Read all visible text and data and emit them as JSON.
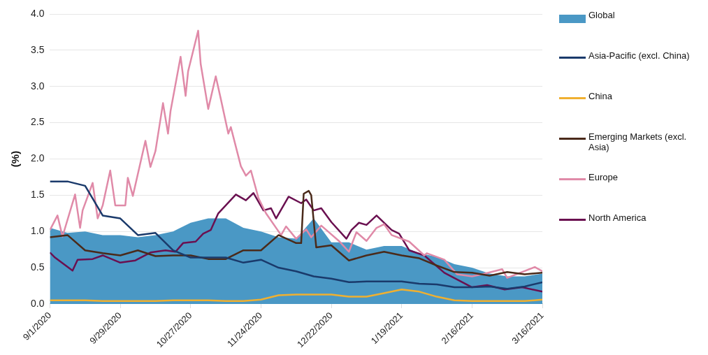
{
  "chart_data": {
    "type": "line",
    "ylabel": "(%)",
    "xlim": [
      "2020-09-01",
      "2021-03-16"
    ],
    "xticks": [
      {
        "value": "2020-09-01",
        "label": "9/1/2020"
      },
      {
        "value": "2020-09-29",
        "label": "9/29/2020"
      },
      {
        "value": "2020-10-27",
        "label": "10/27/2020"
      },
      {
        "value": "2020-11-24",
        "label": "11/24/2020"
      },
      {
        "value": "2020-12-22",
        "label": "12/22/2020"
      },
      {
        "value": "2021-01-19",
        "label": "1/19/2021"
      },
      {
        "value": "2021-02-16",
        "label": "2/16/2021"
      },
      {
        "value": "2021-03-16",
        "label": "3/16/2021"
      }
    ],
    "ylim": [
      0,
      4
    ],
    "yticks": [
      {
        "value": 0,
        "label": "0.0"
      },
      {
        "value": 0.5,
        "label": "0.5"
      },
      {
        "value": 1,
        "label": "1.0"
      },
      {
        "value": 1.5,
        "label": "1.5"
      },
      {
        "value": 2,
        "label": "2.0"
      },
      {
        "value": 2.5,
        "label": "2.5"
      },
      {
        "value": 3,
        "label": "3.0"
      },
      {
        "value": 3.5,
        "label": "3.5"
      },
      {
        "value": 4,
        "label": "4.0"
      }
    ],
    "grid": "y",
    "legend": "right",
    "marker": "none",
    "line_style": "solid",
    "x": [
      "2020-09-01",
      "2020-09-08",
      "2020-09-15",
      "2020-09-22",
      "2020-09-29",
      "2020-10-06",
      "2020-10-13",
      "2020-10-20",
      "2020-10-27",
      "2020-11-03",
      "2020-11-10",
      "2020-11-17",
      "2020-11-24",
      "2020-12-01",
      "2020-12-08",
      "2020-12-15",
      "2020-12-22",
      "2020-12-29",
      "2021-01-05",
      "2021-01-12",
      "2021-01-19",
      "2021-01-26",
      "2021-02-02",
      "2021-02-09",
      "2021-02-16",
      "2021-02-23",
      "2021-03-02",
      "2021-03-09",
      "2021-03-16"
    ],
    "series": [
      {
        "name": "Global",
        "type": "area",
        "color": "#4a98c5",
        "values": [
          1.05,
          0.98,
          1.0,
          0.95,
          0.95,
          0.92,
          0.95,
          1.0,
          1.12,
          1.18,
          1.18,
          1.05,
          1.0,
          0.92,
          0.9,
          1.18,
          0.85,
          0.85,
          0.75,
          0.8,
          0.8,
          0.7,
          0.65,
          0.55,
          0.5,
          0.42,
          0.38,
          0.38,
          0.42
        ]
      },
      {
        "name": "Asia-Pacific (excl. China)",
        "color": "#1a3a6b",
        "values": [
          1.69,
          1.69,
          1.63,
          1.22,
          1.18,
          0.95,
          0.98,
          0.74,
          0.64,
          0.64,
          0.64,
          0.57,
          0.61,
          0.5,
          0.45,
          0.38,
          0.35,
          0.3,
          0.31,
          0.31,
          0.31,
          0.28,
          0.27,
          0.23,
          0.23,
          0.24,
          0.21,
          0.24,
          0.3
        ]
      },
      {
        "name": "China",
        "color": "#f0b030",
        "values": [
          0.05,
          0.05,
          0.05,
          0.04,
          0.04,
          0.04,
          0.04,
          0.05,
          0.05,
          0.05,
          0.04,
          0.04,
          0.06,
          0.12,
          0.13,
          0.13,
          0.13,
          0.1,
          0.1,
          0.15,
          0.2,
          0.17,
          0.1,
          0.05,
          0.04,
          0.04,
          0.04,
          0.04,
          0.06
        ]
      },
      {
        "name": "Emerging Markets (excl. Asia)",
        "color": "#4a2a1a",
        "x": [
          "2020-09-01",
          "2020-09-08",
          "2020-09-15",
          "2020-09-22",
          "2020-09-29",
          "2020-10-06",
          "2020-10-13",
          "2020-10-20",
          "2020-10-27",
          "2020-11-03",
          "2020-11-10",
          "2020-11-17",
          "2020-11-24",
          "2020-12-01",
          "2020-12-08",
          "2020-12-10",
          "2020-12-11",
          "2020-12-13",
          "2020-12-14",
          "2020-12-16",
          "2020-12-22",
          "2020-12-29",
          "2021-01-05",
          "2021-01-12",
          "2021-01-19",
          "2021-01-26",
          "2021-02-02",
          "2021-02-09",
          "2021-02-16",
          "2021-02-23",
          "2021-03-02",
          "2021-03-09",
          "2021-03-16"
        ],
        "values": [
          0.92,
          0.95,
          0.74,
          0.7,
          0.67,
          0.74,
          0.66,
          0.67,
          0.67,
          0.62,
          0.62,
          0.74,
          0.74,
          0.95,
          0.84,
          0.84,
          1.52,
          1.56,
          1.5,
          0.78,
          0.81,
          0.6,
          0.67,
          0.72,
          0.67,
          0.63,
          0.53,
          0.44,
          0.43,
          0.39,
          0.44,
          0.41,
          0.43
        ]
      },
      {
        "name": "Europe",
        "color": "#e08aa8",
        "x": [
          "2020-09-01",
          "2020-09-04",
          "2020-09-06",
          "2020-09-11",
          "2020-09-13",
          "2020-09-14",
          "2020-09-18",
          "2020-09-20",
          "2020-09-22",
          "2020-09-25",
          "2020-09-27",
          "2020-10-01",
          "2020-10-02",
          "2020-10-04",
          "2020-10-09",
          "2020-10-11",
          "2020-10-13",
          "2020-10-16",
          "2020-10-18",
          "2020-10-19",
          "2020-10-23",
          "2020-10-25",
          "2020-10-26",
          "2020-10-30",
          "2020-10-31",
          "2020-11-03",
          "2020-11-06",
          "2020-11-08",
          "2020-11-11",
          "2020-11-12",
          "2020-11-16",
          "2020-11-18",
          "2020-11-20",
          "2020-11-23",
          "2020-11-26",
          "2020-12-02",
          "2020-12-04",
          "2020-12-08",
          "2020-12-12",
          "2020-12-14",
          "2020-12-18",
          "2020-12-20",
          "2020-12-25",
          "2020-12-29",
          "2021-01-01",
          "2021-01-05",
          "2021-01-09",
          "2021-01-12",
          "2021-01-15",
          "2021-01-22",
          "2021-01-28",
          "2021-01-29",
          "2021-02-05",
          "2021-02-10",
          "2021-02-16",
          "2021-02-20",
          "2021-02-28",
          "2021-03-02",
          "2021-03-13",
          "2021-03-16"
        ],
        "values": [
          1.02,
          1.22,
          0.93,
          1.51,
          1.05,
          1.29,
          1.67,
          1.18,
          1.36,
          1.84,
          1.36,
          1.36,
          1.74,
          1.49,
          2.25,
          1.89,
          2.11,
          2.77,
          2.35,
          2.66,
          3.41,
          2.87,
          3.21,
          3.77,
          3.31,
          2.69,
          3.14,
          2.83,
          2.35,
          2.44,
          1.9,
          1.77,
          1.84,
          1.46,
          1.25,
          0.95,
          1.07,
          0.9,
          1.03,
          0.92,
          1.08,
          1.02,
          0.87,
          0.72,
          0.99,
          0.87,
          1.05,
          1.1,
          0.95,
          0.86,
          0.67,
          0.7,
          0.61,
          0.41,
          0.38,
          0.41,
          0.48,
          0.36,
          0.51,
          0.45
        ]
      },
      {
        "name": "North America",
        "color": "#6a1050",
        "x": [
          "2020-09-01",
          "2020-09-03",
          "2020-09-10",
          "2020-09-12",
          "2020-09-18",
          "2020-09-22",
          "2020-09-29",
          "2020-10-05",
          "2020-10-11",
          "2020-10-17",
          "2020-10-21",
          "2020-10-24",
          "2020-10-29",
          "2020-11-01",
          "2020-11-04",
          "2020-11-07",
          "2020-11-14",
          "2020-11-18",
          "2020-11-21",
          "2020-11-25",
          "2020-11-28",
          "2020-11-30",
          "2020-12-05",
          "2020-12-10",
          "2020-12-12",
          "2020-12-15",
          "2020-12-18",
          "2020-12-22",
          "2020-12-28",
          "2020-12-30",
          "2021-01-02",
          "2021-01-05",
          "2021-01-09",
          "2021-01-15",
          "2021-01-18",
          "2021-01-22",
          "2021-01-28",
          "2021-02-05",
          "2021-02-16",
          "2021-02-22",
          "2021-03-01",
          "2021-03-08",
          "2021-03-16"
        ],
        "values": [
          0.71,
          0.64,
          0.46,
          0.61,
          0.62,
          0.67,
          0.57,
          0.6,
          0.71,
          0.74,
          0.72,
          0.84,
          0.86,
          0.97,
          1.02,
          1.25,
          1.51,
          1.43,
          1.53,
          1.29,
          1.32,
          1.18,
          1.48,
          1.39,
          1.44,
          1.29,
          1.32,
          1.13,
          0.9,
          1.02,
          1.12,
          1.09,
          1.22,
          1.02,
          0.97,
          0.74,
          0.67,
          0.43,
          0.23,
          0.26,
          0.2,
          0.23,
          0.17
        ]
      }
    ]
  }
}
